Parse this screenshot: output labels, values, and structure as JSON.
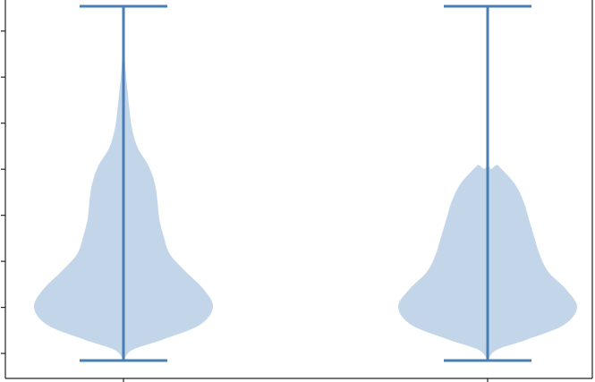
{
  "chart_data": {
    "type": "violin",
    "title": "",
    "xlabel": "",
    "ylabel": "",
    "categories": [
      "",
      ""
    ],
    "ylim": [
      0,
      1
    ],
    "y_ticks": [
      0.02,
      0.15,
      0.28,
      0.41,
      0.54,
      0.67,
      0.8,
      0.93
    ],
    "grid": false,
    "legend": "none",
    "colors": {
      "body": "#a9c4e0",
      "line": "#4a7fb5",
      "axis": "#222222"
    },
    "series": [
      {
        "min": 0.0,
        "max": 1.0,
        "density": [
          [
            0.0,
            0.0
          ],
          [
            0.03,
            0.1
          ],
          [
            0.06,
            0.45
          ],
          [
            0.1,
            0.85
          ],
          [
            0.15,
            1.0
          ],
          [
            0.2,
            0.9
          ],
          [
            0.25,
            0.7
          ],
          [
            0.3,
            0.52
          ],
          [
            0.35,
            0.45
          ],
          [
            0.4,
            0.4
          ],
          [
            0.45,
            0.38
          ],
          [
            0.5,
            0.35
          ],
          [
            0.55,
            0.28
          ],
          [
            0.6,
            0.16
          ],
          [
            0.65,
            0.1
          ],
          [
            0.7,
            0.07
          ],
          [
            0.75,
            0.05
          ],
          [
            0.8,
            0.03
          ],
          [
            0.85,
            0.015
          ],
          [
            0.9,
            0.005
          ],
          [
            1.0,
            0.0
          ]
        ]
      },
      {
        "min": 0.0,
        "max": 1.0,
        "density": [
          [
            0.0,
            0.0
          ],
          [
            0.03,
            0.1
          ],
          [
            0.06,
            0.45
          ],
          [
            0.1,
            0.85
          ],
          [
            0.15,
            1.0
          ],
          [
            0.2,
            0.88
          ],
          [
            0.25,
            0.68
          ],
          [
            0.3,
            0.58
          ],
          [
            0.35,
            0.52
          ],
          [
            0.4,
            0.46
          ],
          [
            0.45,
            0.4
          ],
          [
            0.5,
            0.3
          ],
          [
            0.55,
            0.12
          ],
          [
            0.58,
            0.0
          ],
          [
            1.0,
            0.0
          ]
        ]
      }
    ]
  }
}
